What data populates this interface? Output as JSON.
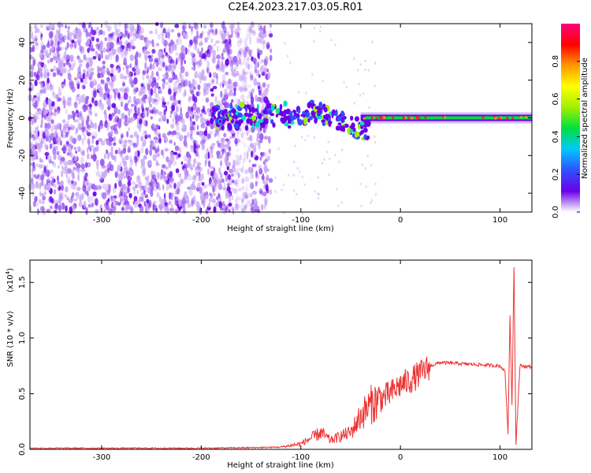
{
  "title": "C2E4.2023.217.03.05.R01",
  "colors": {
    "snr_line": "#ee3333",
    "spec_purple": "#6a00e8",
    "spec_light": "#c9a8f5",
    "axis": "#000000"
  },
  "chart_data": [
    {
      "type": "heatmap",
      "name": "spectrogram",
      "xlabel": "Height of straight line (km)",
      "ylabel": "Frequency (Hz)",
      "xlim": [
        -372,
        132
      ],
      "ylim": [
        -50,
        50
      ],
      "xticks": [
        "-300",
        "-200",
        "-100",
        "0",
        "100"
      ],
      "xtick_values": [
        -300,
        -200,
        -100,
        0,
        100
      ],
      "yticks": [
        "-40",
        "-20",
        "0",
        "20",
        "40"
      ],
      "ytick_values": [
        -40,
        -20,
        0,
        20,
        40
      ],
      "colorbar": {
        "label": "Normalized spectral amplitude",
        "range": [
          0,
          1
        ],
        "ticks": [
          "0.0",
          "0.2",
          "0.4",
          "0.6",
          "0.8"
        ],
        "tick_values": [
          0,
          0.2,
          0.4,
          0.6,
          0.8
        ],
        "colormap": [
          "#ffffff",
          "#6a00e8",
          "#3050ff",
          "#00c8ff",
          "#00e040",
          "#a0f000",
          "#ffff00",
          "#ff9900",
          "#ff0000",
          "#ff0080"
        ]
      },
      "regions": [
        {
          "desc": "scattered noise",
          "x": [
            -372,
            -130
          ],
          "density": "high"
        },
        {
          "desc": "coherent signal near 0 Hz",
          "x": [
            -190,
            132
          ],
          "freq": 0
        }
      ]
    },
    {
      "type": "line",
      "name": "snr",
      "xlabel": "Height of straight line (km)",
      "ylabel": "SNR (10 * v/v)",
      "multiplier_label": "(x10",
      "multiplier_exp": "4",
      "multiplier_close": ")",
      "xlim": [
        -372,
        132
      ],
      "ylim": [
        0,
        1.7
      ],
      "xticks": [
        "-300",
        "-200",
        "-100",
        "0",
        "100"
      ],
      "xtick_values": [
        -300,
        -200,
        -100,
        0,
        100
      ],
      "yticks": [
        "0.0",
        "0.5",
        "1.0",
        "1.5"
      ],
      "ytick_values": [
        0,
        0.5,
        1.0,
        1.5
      ],
      "series": [
        {
          "x": [
            -372,
            -300,
            -200,
            -150,
            -120,
            -100,
            -90,
            -80,
            -70,
            -60,
            -50,
            -40,
            -30,
            -20,
            -10,
            0,
            10,
            20,
            30,
            40,
            60,
            80,
            100,
            105,
            108,
            110,
            112,
            114,
            116,
            120,
            132
          ],
          "y": [
            0.01,
            0.01,
            0.01,
            0.015,
            0.02,
            0.05,
            0.1,
            0.15,
            0.08,
            0.12,
            0.15,
            0.3,
            0.4,
            0.45,
            0.5,
            0.58,
            0.62,
            0.68,
            0.75,
            0.78,
            0.77,
            0.76,
            0.75,
            0.7,
            0.15,
            1.2,
            0.4,
            1.65,
            0.05,
            0.75,
            0.74
          ]
        }
      ]
    }
  ]
}
